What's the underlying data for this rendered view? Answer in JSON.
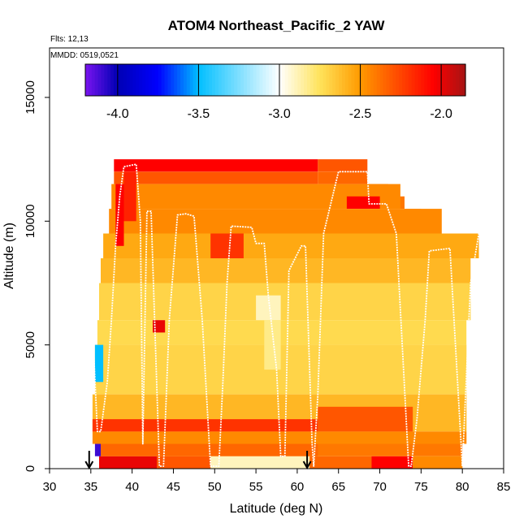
{
  "chart_data": {
    "type": "heatmap",
    "title": "ATOM4 Northeast_Pacific_2 YAW",
    "subtitle_lines": [
      "Flts: 12,13",
      "MMDD: 0519,0521"
    ],
    "xlabel": "Latitude (deg N)",
    "ylabel": "Altitude (m)",
    "xlim": [
      30,
      85
    ],
    "ylim": [
      0,
      17000
    ],
    "x_ticks": [
      "30",
      "35",
      "40",
      "45",
      "50",
      "55",
      "60",
      "65",
      "70",
      "75",
      "80",
      "85"
    ],
    "y_ticks": [
      "0",
      "5000",
      "10000",
      "15000"
    ],
    "colorbar": {
      "range": [
        -4.2,
        -1.85
      ],
      "ticks": [
        "-4.0",
        "-3.5",
        "-3.0",
        "-2.5",
        "-2.0"
      ],
      "colors": [
        "#7a14f0",
        "#0000b4",
        "#0000ff",
        "#00bfff",
        "#ffffff",
        "#ffe35a",
        "#ff9a00",
        "#ff0000",
        "#a61414"
      ]
    },
    "heatmap_bands": [
      {
        "x": [
          37.8,
          62.5
        ],
        "y": [
          12000,
          12500
        ],
        "value": -2.05
      },
      {
        "x": [
          37.8,
          62.5
        ],
        "y": [
          11500,
          12000
        ],
        "value": -2.3
      },
      {
        "x": [
          62.5,
          68.5
        ],
        "y": [
          12000,
          12500
        ],
        "value": -2.3
      },
      {
        "x": [
          62.5,
          68.5
        ],
        "y": [
          11500,
          12000
        ],
        "value": -2.35
      },
      {
        "x": [
          68.5,
          71
        ],
        "y": [
          11000,
          11500
        ],
        "value": -2.35
      },
      {
        "x": [
          71,
          73
        ],
        "y": [
          10500,
          11000
        ],
        "value": -2.4
      },
      {
        "x": [
          73,
          75
        ],
        "y": [
          10000,
          10500
        ],
        "value": -2.45
      },
      {
        "x": [
          37.5,
          72.5
        ],
        "y": [
          10500,
          11500
        ],
        "value": -2.45
      },
      {
        "x": [
          37.2,
          77.5
        ],
        "y": [
          9500,
          10500
        ],
        "value": -2.45
      },
      {
        "x": [
          36.5,
          82
        ],
        "y": [
          8500,
          9500
        ],
        "value": -2.55
      },
      {
        "x": [
          36.2,
          81
        ],
        "y": [
          7500,
          8500
        ],
        "value": -2.6
      },
      {
        "x": [
          36,
          81
        ],
        "y": [
          6000,
          7500
        ],
        "value": -2.7
      },
      {
        "x": [
          35.8,
          80.5
        ],
        "y": [
          5000,
          6000
        ],
        "value": -2.72
      },
      {
        "x": [
          35.5,
          80.5
        ],
        "y": [
          3000,
          5000
        ],
        "value": -2.7
      },
      {
        "x": [
          35.2,
          80.5
        ],
        "y": [
          1500,
          3000
        ],
        "value": -2.6
      },
      {
        "x": [
          35.2,
          80.5
        ],
        "y": [
          1000,
          1500
        ],
        "value": -2.45
      },
      {
        "x": [
          36,
          80
        ],
        "y": [
          500,
          1000
        ],
        "value": -2.4
      },
      {
        "x": [
          36,
          80
        ],
        "y": [
          0,
          500
        ],
        "value": -2.55
      },
      {
        "x": [
          36,
          43
        ],
        "y": [
          0,
          500
        ],
        "value": -2.0
      },
      {
        "x": [
          43,
          50
        ],
        "y": [
          0,
          500
        ],
        "value": -2.3
      },
      {
        "x": [
          49.5,
          61.5
        ],
        "y": [
          0,
          600
        ],
        "value": -2.9
      },
      {
        "x": [
          61.5,
          69
        ],
        "y": [
          0,
          500
        ],
        "value": -2.35
      },
      {
        "x": [
          69,
          74
        ],
        "y": [
          0,
          500
        ],
        "value": -2.05
      },
      {
        "x": [
          74,
          80
        ],
        "y": [
          0,
          500
        ],
        "value": -2.45
      },
      {
        "x": [
          35.2,
          62.5
        ],
        "y": [
          1500,
          2000
        ],
        "value": -2.2
      },
      {
        "x": [
          62.5,
          74
        ],
        "y": [
          1500,
          2500
        ],
        "value": -2.3
      },
      {
        "x": [
          36,
          62.5
        ],
        "y": [
          500,
          1000
        ],
        "value": -2.35
      },
      {
        "x": [
          35.5,
          36.5
        ],
        "y": [
          3500,
          5000
        ],
        "value": -3.5
      },
      {
        "x": [
          35.5,
          36.2
        ],
        "y": [
          500,
          1000
        ],
        "value": -4.1
      },
      {
        "x": [
          38,
          39
        ],
        "y": [
          9000,
          11500
        ],
        "value": -2.05
      },
      {
        "x": [
          39,
          40.5
        ],
        "y": [
          10000,
          12000
        ],
        "value": -2.15
      },
      {
        "x": [
          49.5,
          53.5
        ],
        "y": [
          8500,
          9500
        ],
        "value": -2.2
      },
      {
        "x": [
          66,
          70
        ],
        "y": [
          10500,
          11000
        ],
        "value": -2.05
      },
      {
        "x": [
          42.5,
          44
        ],
        "y": [
          5500,
          6000
        ],
        "value": -2.0
      },
      {
        "x": [
          55,
          58
        ],
        "y": [
          6000,
          7000
        ],
        "value": -2.9
      },
      {
        "x": [
          56,
          58
        ],
        "y": [
          4000,
          6000
        ],
        "value": -2.82
      }
    ],
    "flight_track": {
      "lat": [
        35.3,
        35.8,
        36.2,
        37.0,
        37.5,
        38.0,
        38.5,
        39.0,
        40.5,
        41.0,
        41.3,
        41.8,
        42.3,
        43.3,
        43.8,
        44.5,
        45.5,
        46.5,
        47.5,
        48.5,
        49.5,
        50.5,
        51.0,
        51.5,
        52.0,
        54.5,
        55.0,
        56.0,
        56.5,
        57.5,
        58.0,
        58.5,
        59.0,
        60.5,
        61.0,
        61.8,
        62.0,
        62.5,
        63.2,
        65.0,
        68.5,
        68.7,
        69.5,
        70.8,
        72.0,
        73.5,
        73.8,
        74.5,
        75.5,
        76.0,
        78.5,
        80.0,
        81.0,
        82.0
      ],
      "alt": [
        5000,
        1500,
        1500,
        3500,
        6000,
        9000,
        11000,
        12200,
        12300,
        10000,
        1000,
        10400,
        10400,
        100,
        100,
        6000,
        10250,
        10300,
        10200,
        6000,
        100,
        100,
        3500,
        7500,
        9800,
        9750,
        9100,
        9100,
        7000,
        4000,
        500,
        500,
        8000,
        9000,
        9000,
        1000,
        100,
        3000,
        9500,
        12000,
        12000,
        10700,
        10700,
        10700,
        9500,
        100,
        100,
        2000,
        6000,
        8800,
        8900,
        100,
        7500,
        9500
      ]
    },
    "arrows_lat": [
      34.8,
      61.2
    ],
    "grid": false,
    "legend": "top-colorbar"
  }
}
